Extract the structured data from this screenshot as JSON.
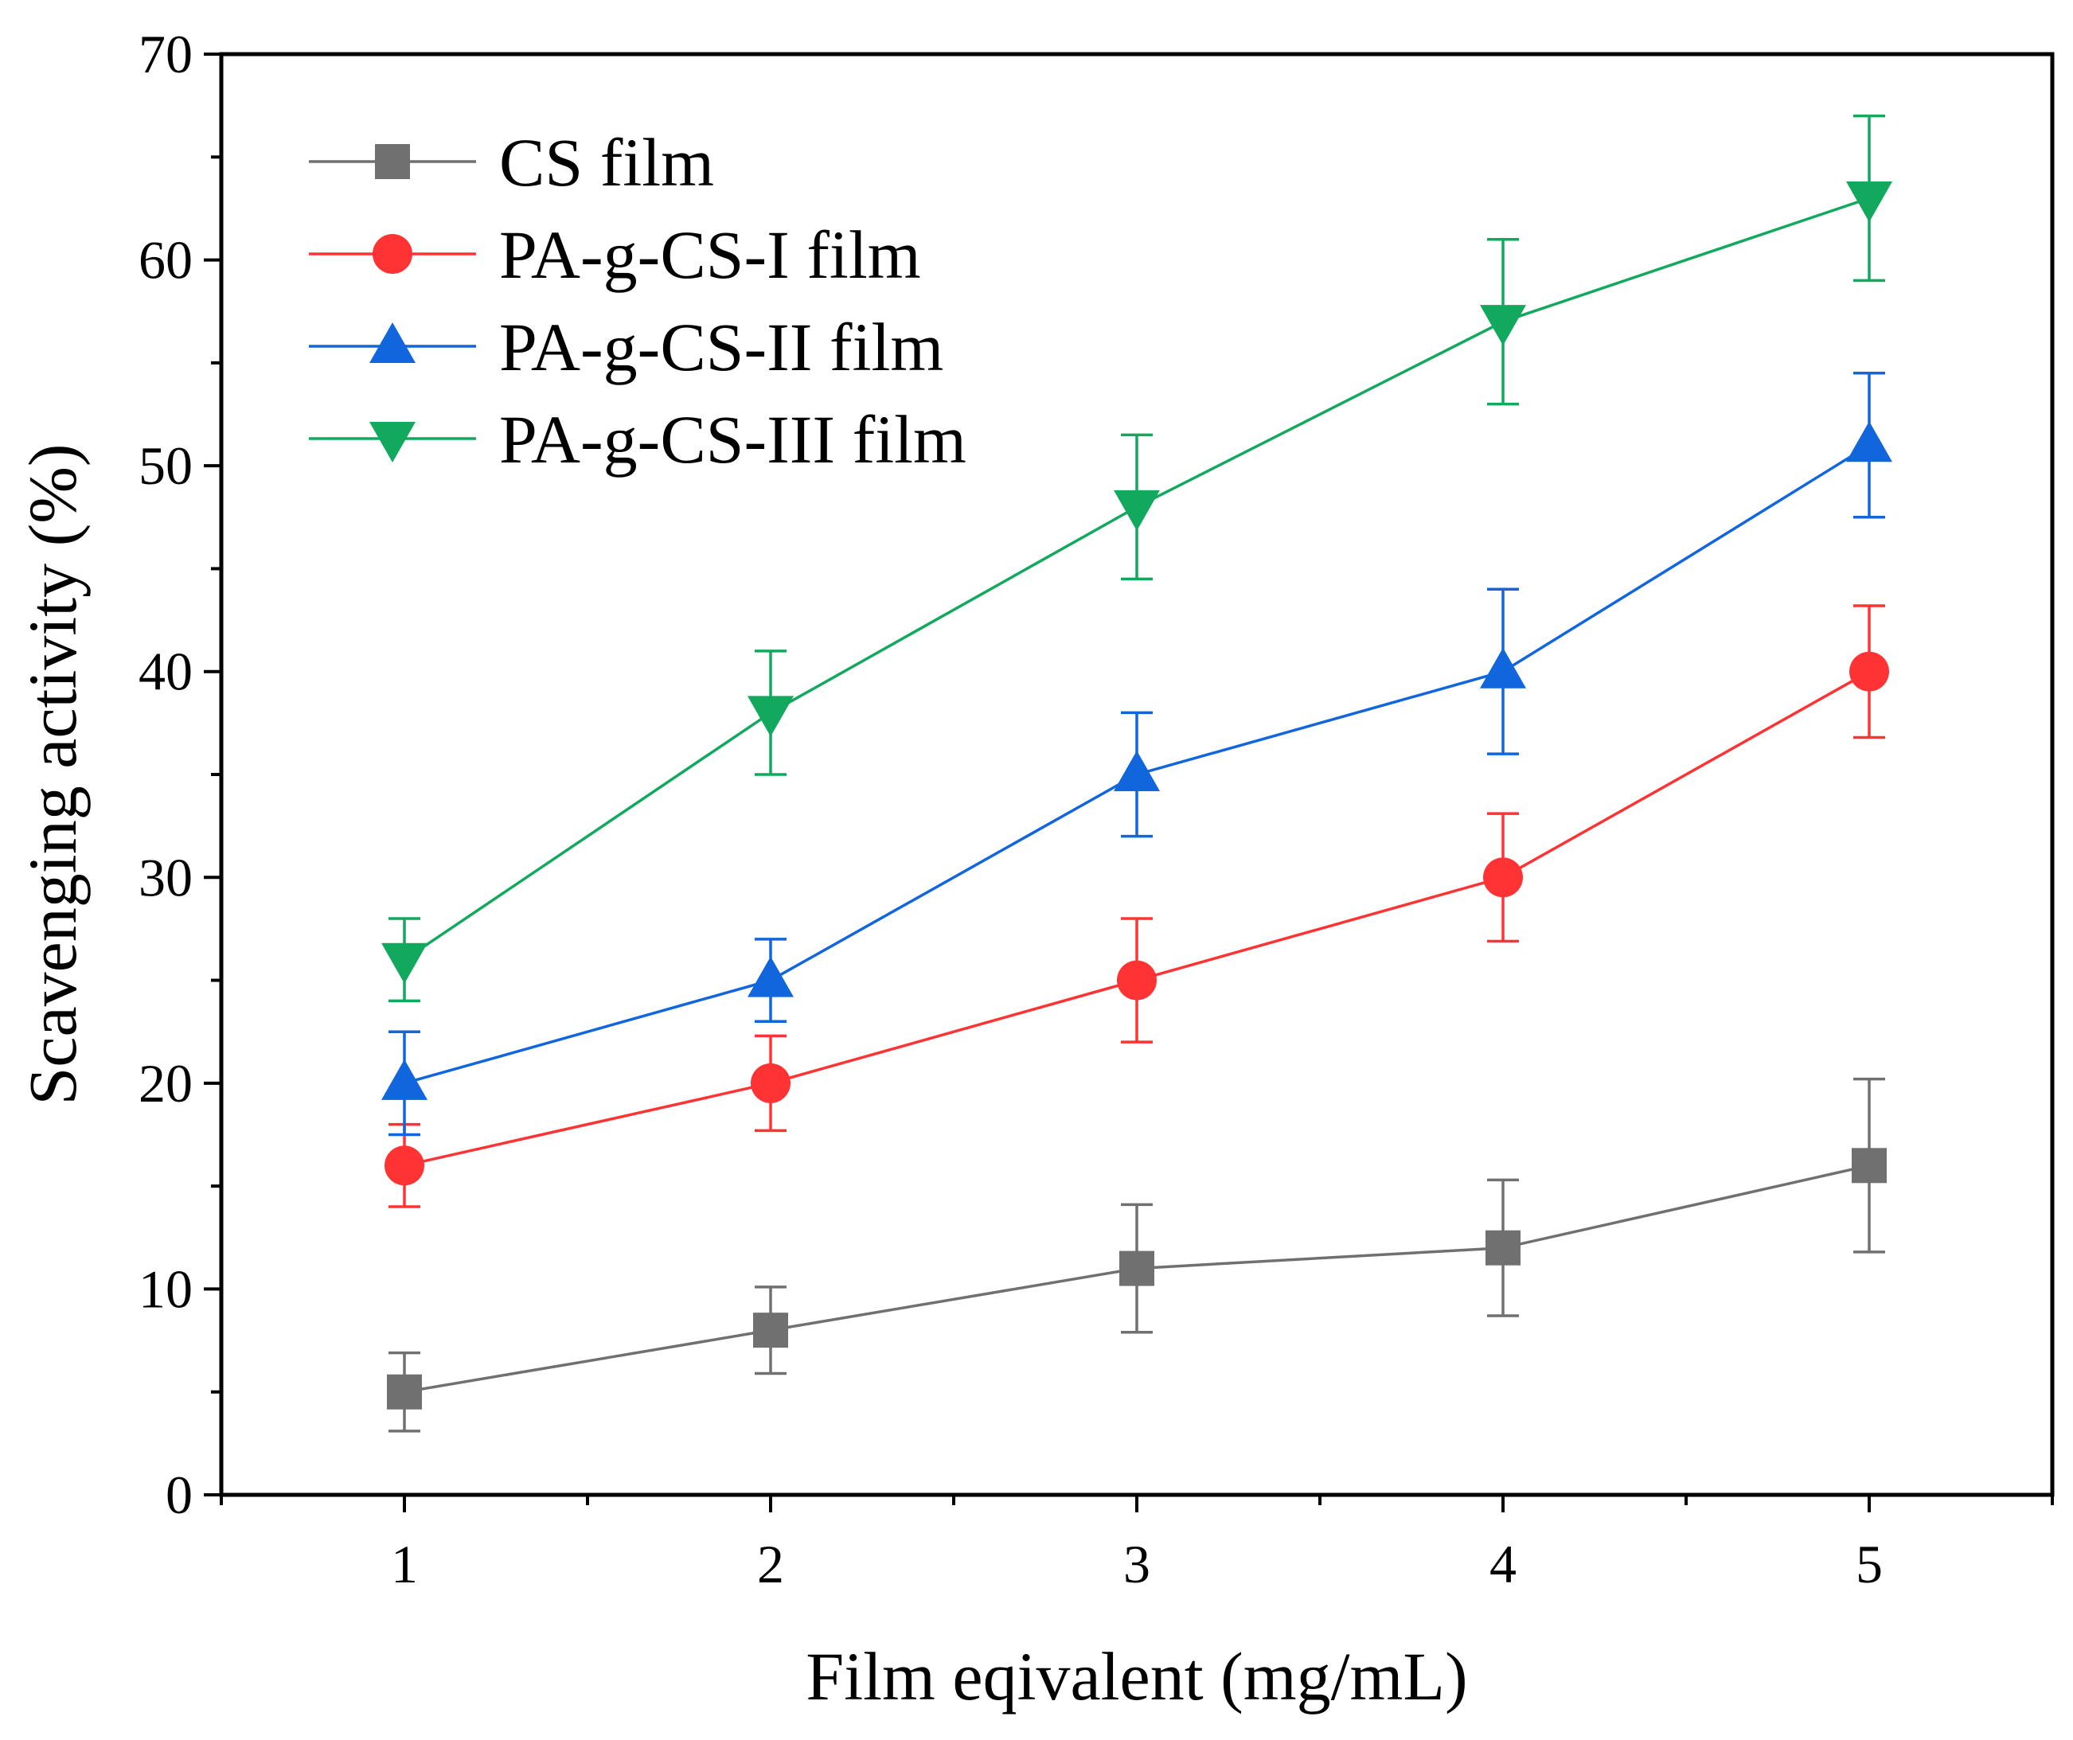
{
  "chart_data": {
    "type": "line",
    "title": "",
    "xlabel": "Film eqivalent (mg/mL)",
    "ylabel": "Scavenging activity (%)",
    "xlim": [
      0.5,
      5.5
    ],
    "ylim": [
      0,
      70
    ],
    "x": [
      1,
      2,
      3,
      4,
      5
    ],
    "x_ticks": [
      "1",
      "2",
      "3",
      "4",
      "5"
    ],
    "y_ticks": [
      "0",
      "10",
      "20",
      "30",
      "40",
      "50",
      "60",
      "70"
    ],
    "legend_position": "top-left",
    "grid": false,
    "series": [
      {
        "name": "CS film",
        "marker": "square",
        "color": "#707070",
        "values": [
          5,
          8,
          11,
          12,
          16
        ],
        "errors": [
          1.9,
          2.1,
          3.1,
          3.3,
          4.2
        ]
      },
      {
        "name": "PA-g-CS-I film",
        "marker": "circle",
        "color": "#ff3333",
        "values": [
          16,
          20,
          25,
          30,
          40
        ],
        "errors": [
          2.0,
          2.3,
          3.0,
          3.1,
          3.2
        ]
      },
      {
        "name": "PA-g-CS-II film",
        "marker": "triangle-up",
        "color": "#1166dd",
        "values": [
          20,
          25,
          35,
          40,
          51
        ],
        "errors": [
          2.5,
          2.0,
          3.0,
          4.0,
          3.5
        ]
      },
      {
        "name": "PA-g-CS-III film",
        "marker": "triangle-down",
        "color": "#12a85e",
        "values": [
          26,
          38,
          48,
          57,
          63
        ],
        "errors": [
          2.0,
          3.0,
          3.5,
          4.0,
          4.0
        ]
      }
    ]
  }
}
